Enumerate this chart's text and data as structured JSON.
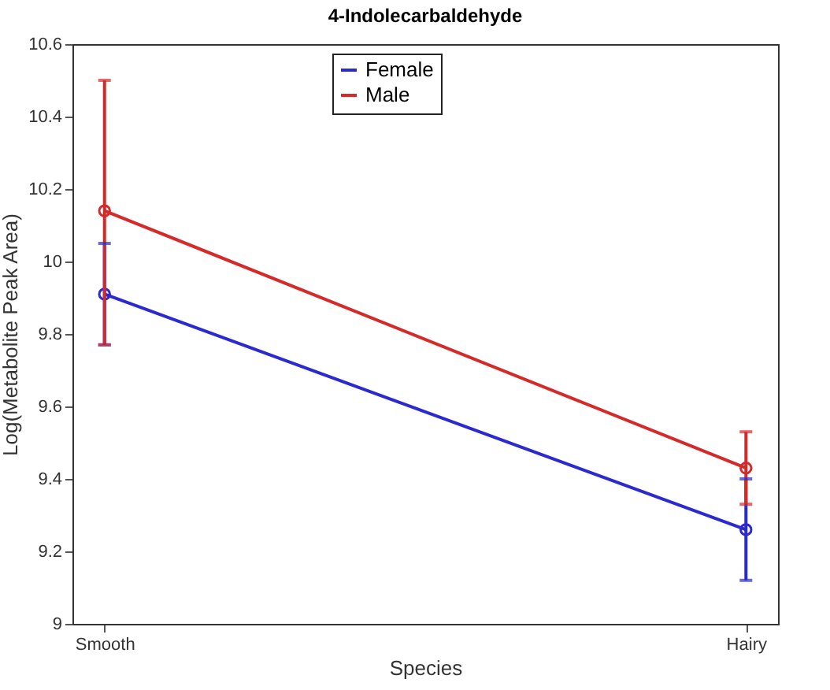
{
  "chart_data": {
    "type": "line",
    "title": "4-Indolecarbaldehyde",
    "xlabel": "Species",
    "ylabel": "Log(Metabolite Peak Area)",
    "categories": [
      "Smooth",
      "Hairy"
    ],
    "series": [
      {
        "name": "Female",
        "color": "#2a2ad0",
        "values": [
          9.91,
          9.26
        ],
        "errors": [
          [
            9.77,
            10.05
          ],
          [
            9.12,
            9.4
          ]
        ]
      },
      {
        "name": "Male",
        "color": "#d42a2a",
        "values": [
          10.14,
          9.43
        ],
        "errors": [
          [
            9.77,
            10.5
          ],
          [
            9.33,
            9.53
          ]
        ]
      }
    ],
    "ylim": [
      9,
      10.6
    ],
    "yticks": [
      9,
      9.2,
      9.4,
      9.6,
      9.8,
      10,
      10.2,
      10.4,
      10.6
    ],
    "grid": false,
    "legend": "top",
    "marker": "circle",
    "line_style": "solid"
  }
}
